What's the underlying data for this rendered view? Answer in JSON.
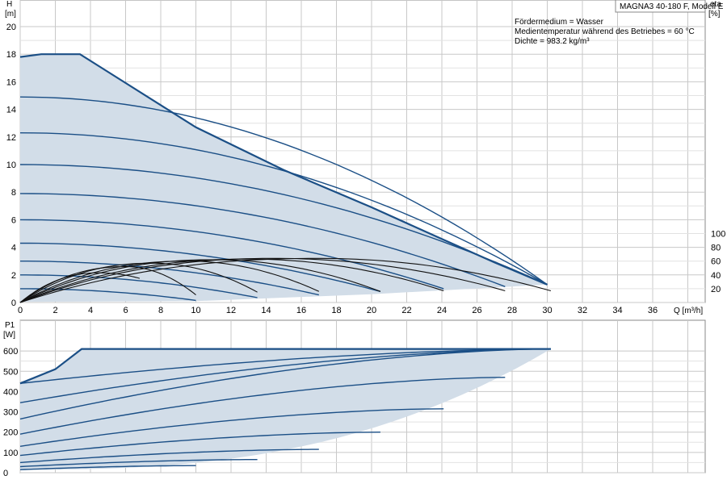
{
  "chart_data": [
    {
      "type": "line",
      "panel": "head",
      "ylabel_top": "H",
      "ylabel_unit": "[m]",
      "xlabel": "Q [m³/h]",
      "right_label_top": "eta",
      "right_label_unit": "[%]",
      "xlim": [
        0,
        39
      ],
      "ylim": [
        0,
        21
      ],
      "x_ticks": [
        0,
        2,
        4,
        6,
        8,
        10,
        12,
        14,
        16,
        18,
        20,
        22,
        24,
        26,
        28,
        30,
        32,
        34,
        36
      ],
      "y_ticks": [
        0,
        2,
        4,
        6,
        8,
        10,
        12,
        14,
        16,
        18,
        20
      ],
      "right_ticks": [
        20,
        40,
        60,
        80,
        100
      ],
      "grid": true,
      "legend": "none",
      "info_lines": [
        "MAGNA3 40-180 F, Modell E",
        "Fördermedium = Wasser",
        "Medientemperatur während des Betriebes = 60 °C",
        "Dichte = 983.2 kg/m³"
      ],
      "max_curve": {
        "x": [
          0,
          1.2,
          3.4,
          10,
          15,
          20,
          24,
          27,
          30
        ],
        "y": [
          17.8,
          18,
          18,
          12.7,
          9.6,
          6.9,
          4.6,
          2.9,
          1.3
        ]
      },
      "envelope_bottom": {
        "x": [
          0,
          10,
          20,
          30
        ],
        "y": [
          0.05,
          0.1,
          0.6,
          1.3
        ]
      },
      "speed_curves": [
        {
          "h0": 1.0,
          "qmax": 10,
          "hend": 0.15
        },
        {
          "h0": 2.0,
          "qmax": 13.5,
          "hend": 0.35
        },
        {
          "h0": 3.0,
          "qmax": 17,
          "hend": 0.55
        },
        {
          "h0": 4.3,
          "qmax": 20.5,
          "hend": 0.8
        },
        {
          "h0": 6.0,
          "qmax": 24.1,
          "hend": 1.0
        },
        {
          "h0": 7.9,
          "qmax": 27.6,
          "hend": 1.15
        },
        {
          "h0": 10.0,
          "qmax": 30,
          "hend": 1.3
        },
        {
          "h0": 12.3,
          "qmax": 30,
          "hend": 1.3
        },
        {
          "h0": 14.9,
          "qmax": 30,
          "hend": 1.3
        }
      ],
      "eta_curves": [
        {
          "qmax": 6.8,
          "etaPeak": 43,
          "qpeak": 4.5,
          "etaEnd": 35
        },
        {
          "qmax": 10,
          "etaPeak": 52,
          "qpeak": 6,
          "etaEnd": 11
        },
        {
          "qmax": 13.5,
          "etaPeak": 57,
          "qpeak": 7.5,
          "etaEnd": 15
        },
        {
          "qmax": 17,
          "etaPeak": 60,
          "qpeak": 9.5,
          "etaEnd": 16
        },
        {
          "qmax": 20.5,
          "etaPeak": 62,
          "qpeak": 11,
          "etaEnd": 16
        },
        {
          "qmax": 24.1,
          "etaPeak": 63,
          "qpeak": 13,
          "etaEnd": 17
        },
        {
          "qmax": 27.6,
          "etaPeak": 64,
          "qpeak": 14.5,
          "etaEnd": 17
        },
        {
          "qmax": 30.2,
          "etaPeak": 64,
          "qpeak": 17,
          "etaEnd": 17
        }
      ]
    },
    {
      "type": "line",
      "panel": "power",
      "ylabel_top": "P1",
      "ylabel_unit": "[W]",
      "xlim": [
        0,
        39
      ],
      "ylim": [
        0,
        650
      ],
      "y_ticks": [
        0,
        100,
        200,
        300,
        400,
        500,
        600
      ],
      "grid": true,
      "max_curve": {
        "x": [
          0,
          2,
          3.5,
          20,
          30.2
        ],
        "y": [
          440,
          510,
          610,
          610,
          610
        ]
      },
      "envelope_bottom": {
        "x": [
          0,
          10,
          20,
          30.2
        ],
        "y": [
          15,
          50,
          280,
          610
        ]
      },
      "power_curves": [
        {
          "p0": 15,
          "qmax": 10,
          "pend": 35
        },
        {
          "p0": 30,
          "qmax": 13.5,
          "pend": 65
        },
        {
          "p0": 50,
          "qmax": 17,
          "pend": 115
        },
        {
          "p0": 85,
          "qmax": 20.5,
          "pend": 200
        },
        {
          "p0": 130,
          "qmax": 24.1,
          "pend": 315
        },
        {
          "p0": 190,
          "qmax": 27.6,
          "pend": 470
        },
        {
          "p0": 265,
          "qmax": 30.2,
          "pend": 610
        },
        {
          "p0": 345,
          "qmax": 30.2,
          "pend": 610
        },
        {
          "p0": 440,
          "qmax": 30.2,
          "pend": 610
        }
      ]
    }
  ]
}
